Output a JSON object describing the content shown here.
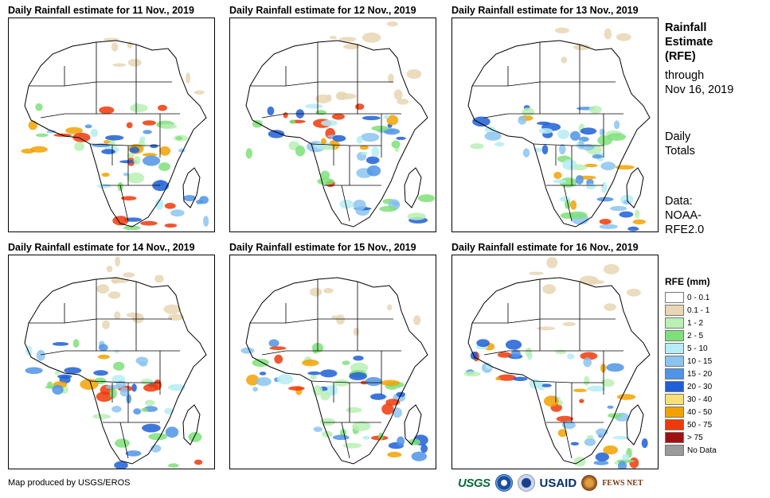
{
  "panels": [
    {
      "title": "Daily Rainfall estimate for 11 Nov., 2019"
    },
    {
      "title": "Daily Rainfall estimate for 12 Nov., 2019"
    },
    {
      "title": "Daily Rainfall estimate for 13 Nov., 2019"
    },
    {
      "title": "Daily Rainfall estimate for 14 Nov., 2019"
    },
    {
      "title": "Daily Rainfall estimate for 15 Nov., 2019"
    },
    {
      "title": "Daily Rainfall estimate for 16 Nov., 2019"
    }
  ],
  "side": {
    "title_lines": [
      "Rainfall",
      "Estimate",
      "(RFE)"
    ],
    "through_lines": [
      "through",
      "Nov 16, 2019"
    ],
    "totals_lines": [
      "Daily",
      "Totals"
    ],
    "data_lines": [
      "Data:",
      "NOAA-",
      "RFE2.0"
    ]
  },
  "legend": {
    "title": "RFE (mm)",
    "items": [
      {
        "label": "0 - 0.1",
        "color": "#ffffff"
      },
      {
        "label": "0.1 - 1",
        "color": "#e8d6b4"
      },
      {
        "label": "1 - 2",
        "color": "#b9f0b4"
      },
      {
        "label": "2 - 5",
        "color": "#7fe07a"
      },
      {
        "label": "5 - 10",
        "color": "#b6ecf5"
      },
      {
        "label": "10 - 15",
        "color": "#8cc4f0"
      },
      {
        "label": "15 - 20",
        "color": "#4f94e6"
      },
      {
        "label": "20 - 30",
        "color": "#1f5fd6"
      },
      {
        "label": "30 - 40",
        "color": "#f7e07a"
      },
      {
        "label": "40 - 50",
        "color": "#f2a200"
      },
      {
        "label": "50 - 75",
        "color": "#ee3a0a"
      },
      {
        "label": "> 75",
        "color": "#a01010"
      },
      {
        "label": "No Data",
        "color": "#9a9a9a"
      }
    ]
  },
  "credit": "Map produced by USGS/EROS",
  "logos": {
    "usgs": "USGS",
    "usaid": "USAID",
    "fews": "FEWS NET"
  }
}
